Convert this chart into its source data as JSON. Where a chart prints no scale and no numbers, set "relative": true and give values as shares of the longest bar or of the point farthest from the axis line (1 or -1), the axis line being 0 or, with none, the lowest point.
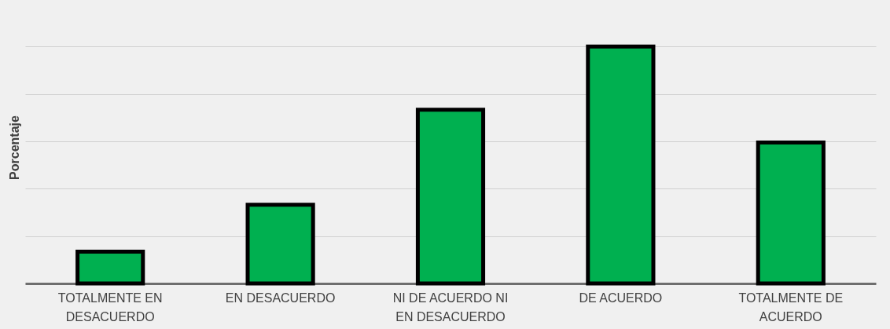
{
  "chart_data": {
    "type": "bar",
    "ylabel": "Porcentaje",
    "categories": [
      "TOTALMENTE EN DESACUERDO",
      "EN DESACUERDO",
      "NI DE ACUERDO NI EN DESACUERDO",
      "DE ACUERDO",
      "TOTALMENTE DE ACUERDO"
    ],
    "values": [
      0.134,
      0.332,
      0.733,
      1,
      0.595
    ],
    "color": "#00b050",
    "relative": true,
    "grid": "y"
  }
}
